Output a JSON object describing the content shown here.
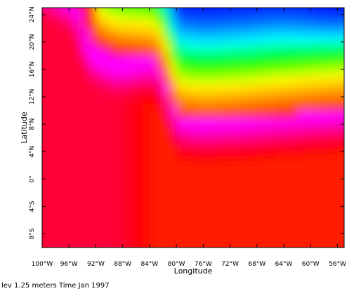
{
  "chart_data": {
    "type": "heatmap",
    "xlabel": "Longitude",
    "ylabel": "Latitude",
    "xlim": [
      -100,
      -55
    ],
    "ylim": [
      -10,
      25
    ],
    "x_ticks": [
      {
        "value": -100,
        "label": "100°W"
      },
      {
        "value": -96,
        "label": "96°W"
      },
      {
        "value": -92,
        "label": "92°W"
      },
      {
        "value": -88,
        "label": "88°W"
      },
      {
        "value": -84,
        "label": "84°W"
      },
      {
        "value": -80,
        "label": "80°W"
      },
      {
        "value": -76,
        "label": "76°W"
      },
      {
        "value": -72,
        "label": "72°W"
      },
      {
        "value": -68,
        "label": "68°W"
      },
      {
        "value": -64,
        "label": "64°W"
      },
      {
        "value": -60,
        "label": "60°W"
      },
      {
        "value": -56,
        "label": "56°W"
      }
    ],
    "y_ticks": [
      {
        "value": -8,
        "label": "8°S"
      },
      {
        "value": -4,
        "label": "4°S"
      },
      {
        "value": 0,
        "label": "0°"
      },
      {
        "value": 4,
        "label": "4°N"
      },
      {
        "value": 8,
        "label": "8°N"
      },
      {
        "value": 12,
        "label": "12°N"
      },
      {
        "value": 16,
        "label": "16°N"
      },
      {
        "value": 20,
        "label": "20°N"
      },
      {
        "value": 24,
        "label": "24°N"
      }
    ],
    "colormap": [
      "#ff00ff",
      "#ff0066",
      "#ff0000",
      "#ff8000",
      "#ffff00",
      "#00ff00",
      "#00ffff",
      "#0066ff",
      "#0000ff"
    ],
    "grid": false,
    "legend": "none"
  },
  "footer": "lev 1.25 meters Time Jan 1997"
}
